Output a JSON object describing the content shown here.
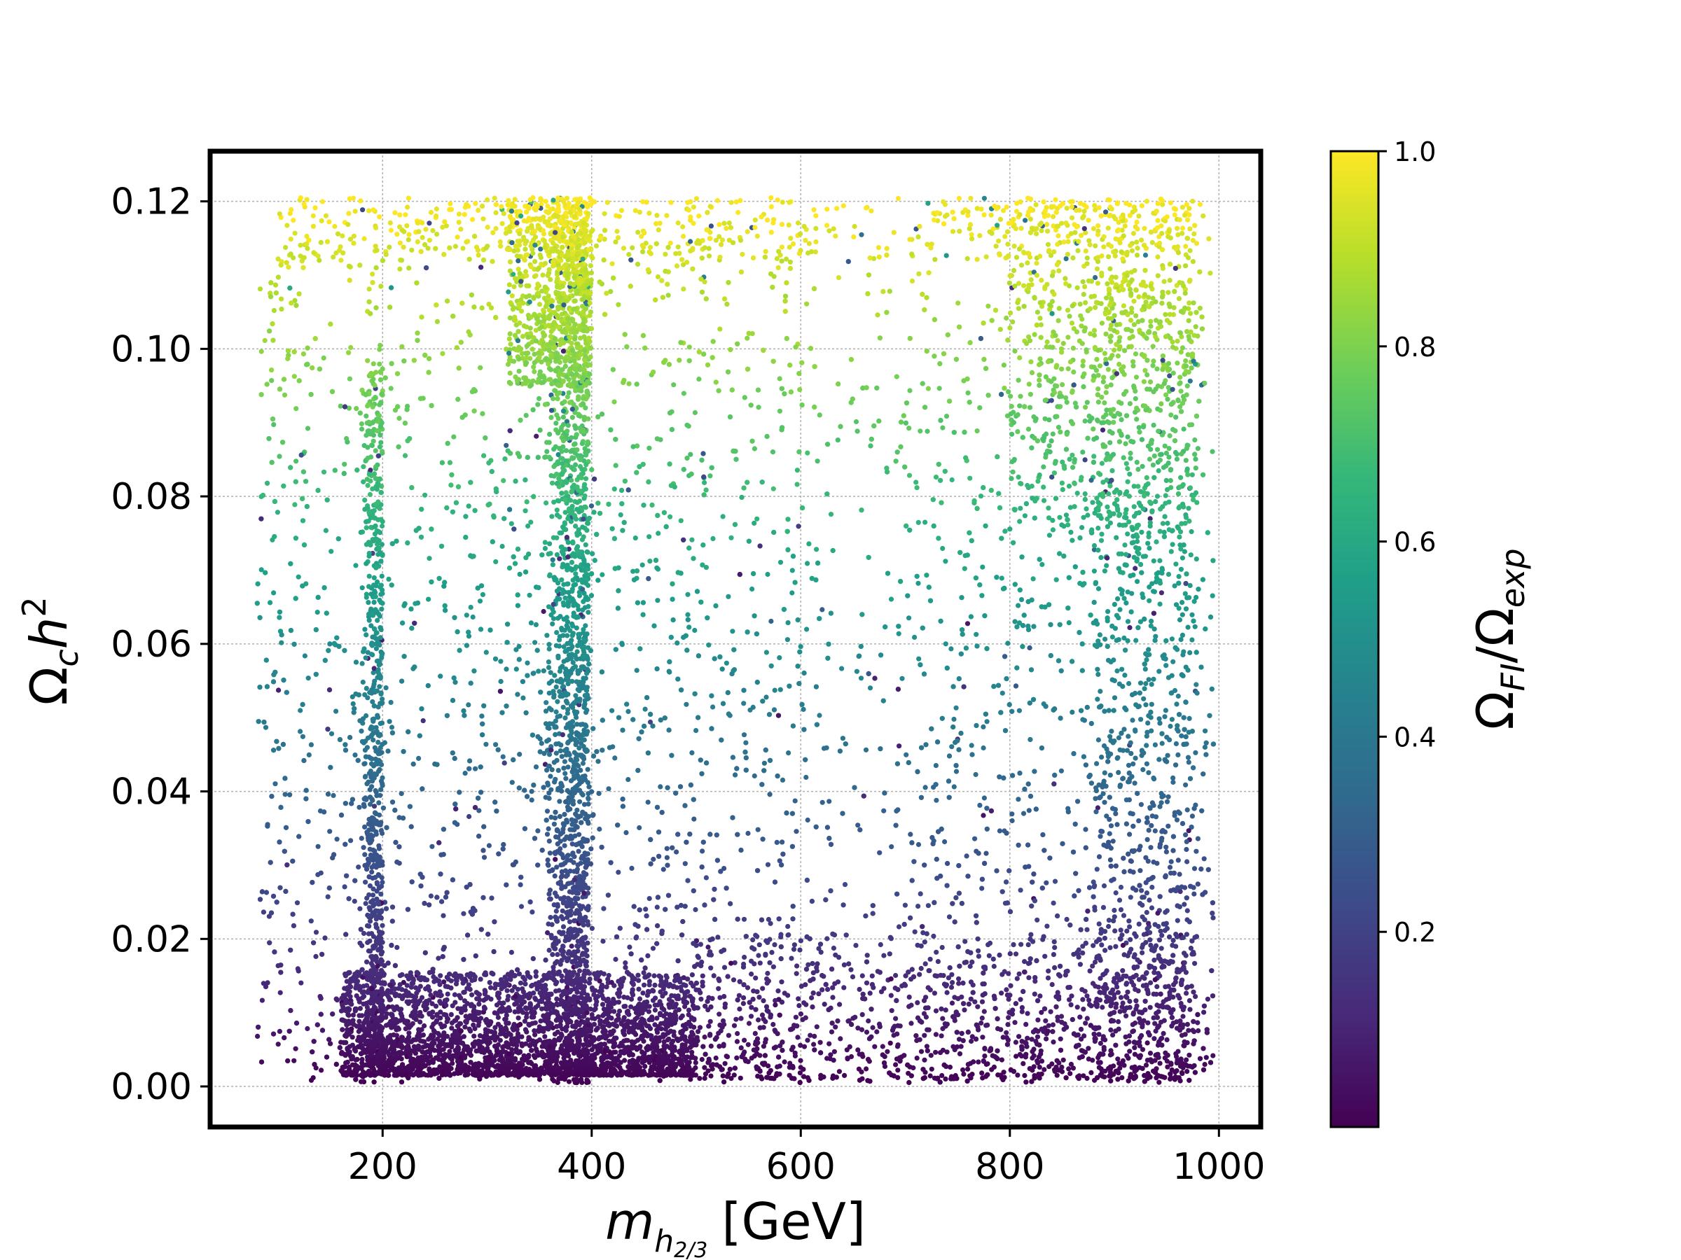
{
  "chart_data": {
    "type": "scatter",
    "title": "",
    "xlabel": {
      "base": "m",
      "sub": "h",
      "subsub": "2/3",
      "unit": "[GeV]"
    },
    "ylabel": {
      "base": "Ω",
      "sub": "c",
      "var": "h",
      "sup": "2"
    },
    "colorbar_label": {
      "num": "Ω",
      "num_sub": "FI",
      "slash": "/",
      "den": "Ω",
      "den_sub": "exp"
    },
    "xlim": [
      35,
      1040
    ],
    "ylim": [
      -0.0055,
      0.1268
    ],
    "xticks": [
      200,
      400,
      600,
      800,
      1000
    ],
    "xtick_labels": [
      "200",
      "400",
      "600",
      "800",
      "1000"
    ],
    "yticks": [
      0.0,
      0.02,
      0.04,
      0.06,
      0.08,
      0.1,
      0.12
    ],
    "ytick_labels": [
      "0.00",
      "0.02",
      "0.04",
      "0.06",
      "0.08",
      "0.10",
      "0.12"
    ],
    "colorbar_range": [
      0.0,
      1.0
    ],
    "colorbar_ticks": [
      0.2,
      0.4,
      0.6,
      0.8,
      1.0
    ],
    "colorbar_tick_labels": [
      "0.2",
      "0.4",
      "0.6",
      "0.8",
      "1.0"
    ],
    "colormap": [
      "#440154",
      "#482878",
      "#3e4989",
      "#31688e",
      "#26828e",
      "#1f9e89",
      "#35b779",
      "#6ece58",
      "#b5de2b",
      "#fde725"
    ],
    "grid": true,
    "data_points": {
      "description_x_range": [
        80,
        995
      ],
      "description_y_range": [
        0.0005,
        0.1205
      ],
      "color_value": "proportional to y / 0.1205",
      "dense_bands_x": [
        200,
        390
      ],
      "dense_region_bottom": {
        "x": [
          160,
          500
        ],
        "y": [
          0.001,
          0.012
        ]
      },
      "sparse_gap_x": [
        600,
        700
      ]
    }
  }
}
